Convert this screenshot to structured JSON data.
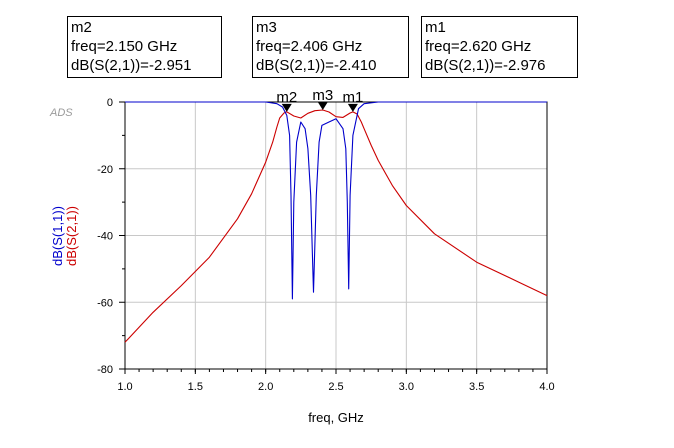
{
  "tool_badge": "ADS",
  "markers": [
    {
      "name": "m2",
      "freq_line": "freq=2.150 GHz",
      "value_line": "dB(S(2,1))=-2.951",
      "freq": 2.15,
      "value": -2.951
    },
    {
      "name": "m3",
      "freq_line": "freq=2.406 GHz",
      "value_line": "dB(S(2,1))=-2.410",
      "freq": 2.406,
      "value": -2.41
    },
    {
      "name": "m1",
      "freq_line": "freq=2.620 GHz",
      "value_line": "dB(S(2,1))=-2.976",
      "freq": 2.62,
      "value": -2.976
    }
  ],
  "chart_data": {
    "type": "line",
    "xlabel": "freq, GHz",
    "ylabels": [
      {
        "text": "dB(S(1,1))",
        "color": "#0000cc"
      },
      {
        "text": "dB(S(2,1))",
        "color": "#cc0000"
      }
    ],
    "xlim": [
      1.0,
      4.0
    ],
    "ylim": [
      -80,
      0
    ],
    "grid": true,
    "xticks": [
      "1.0",
      "1.5",
      "2.0",
      "2.5",
      "3.0",
      "3.5",
      "4.0"
    ],
    "yticks": [
      "0",
      "-20",
      "-40",
      "-60",
      "-80"
    ],
    "series": [
      {
        "name": "dB(S(2,1))",
        "color": "#cc0000",
        "x": [
          1.0,
          1.2,
          1.4,
          1.6,
          1.8,
          1.9,
          2.0,
          2.05,
          2.08,
          2.1,
          2.13,
          2.15,
          2.2,
          2.25,
          2.3,
          2.35,
          2.406,
          2.45,
          2.5,
          2.55,
          2.6,
          2.62,
          2.65,
          2.68,
          2.7,
          2.75,
          2.8,
          2.9,
          3.0,
          3.2,
          3.5,
          3.8,
          4.0
        ],
        "y": [
          -72,
          -63,
          -55,
          -46.5,
          -35,
          -27.5,
          -18,
          -12,
          -7.5,
          -4.8,
          -3.3,
          -2.95,
          -4.2,
          -4.8,
          -3.4,
          -2.6,
          -2.41,
          -3.0,
          -4.4,
          -4.6,
          -3.3,
          -2.98,
          -3.6,
          -6.0,
          -8.0,
          -13,
          -17.5,
          -25,
          -31,
          -39.5,
          -48,
          -54,
          -58
        ]
      },
      {
        "name": "dB(S(1,1))",
        "color": "#0000cc",
        "x": [
          1.0,
          2.0,
          2.08,
          2.12,
          2.15,
          2.17,
          2.18,
          2.19,
          2.2,
          2.22,
          2.25,
          2.28,
          2.3,
          2.32,
          2.34,
          2.36,
          2.38,
          2.4,
          2.45,
          2.5,
          2.55,
          2.57,
          2.58,
          2.59,
          2.6,
          2.62,
          2.66,
          2.7,
          2.8,
          4.0
        ],
        "y": [
          0,
          0,
          -0.5,
          -1.5,
          -4,
          -10,
          -28,
          -59,
          -30,
          -12,
          -6,
          -8,
          -14,
          -28,
          -57,
          -28,
          -12,
          -7,
          -6,
          -5,
          -8,
          -14,
          -30,
          -56,
          -28,
          -10,
          -2,
          -0.5,
          0,
          0
        ]
      }
    ],
    "markers": [
      {
        "label": "m2",
        "x": 2.15,
        "y": -2.951
      },
      {
        "label": "m3",
        "x": 2.406,
        "y": -2.41
      },
      {
        "label": "m1",
        "x": 2.62,
        "y": -2.976
      }
    ]
  }
}
